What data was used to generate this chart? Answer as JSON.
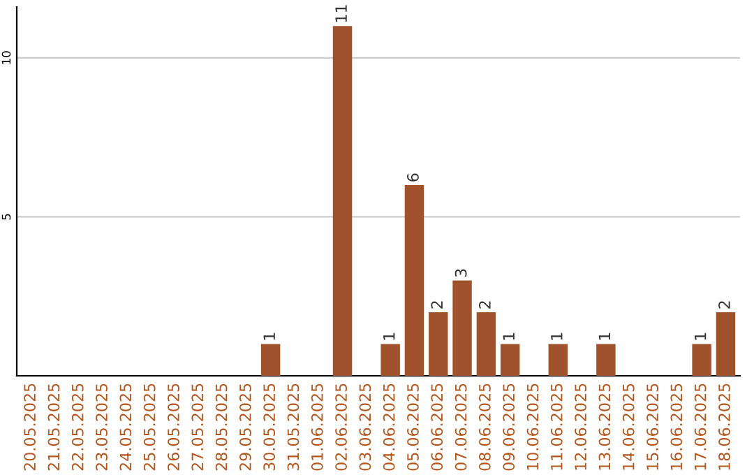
{
  "chart_data": {
    "type": "bar",
    "categories": [
      "20.05.2025",
      "21.05.2025",
      "22.05.2025",
      "23.05.2025",
      "24.05.2025",
      "25.05.2025",
      "26.05.2025",
      "27.05.2025",
      "28.05.2025",
      "29.05.2025",
      "30.05.2025",
      "31.05.2025",
      "01.06.2025",
      "02.06.2025",
      "03.06.2025",
      "04.06.2025",
      "05.06.2025",
      "06.06.2025",
      "07.06.2025",
      "08.06.2025",
      "09.06.2025",
      "10.06.2025",
      "11.06.2025",
      "12.06.2025",
      "13.06.2025",
      "14.06.2025",
      "15.06.2025",
      "16.06.2025",
      "17.06.2025",
      "18.06.2025"
    ],
    "values": [
      0,
      0,
      0,
      0,
      0,
      0,
      0,
      0,
      0,
      0,
      1,
      0,
      0,
      11,
      0,
      1,
      6,
      2,
      3,
      2,
      1,
      0,
      1,
      0,
      1,
      0,
      0,
      0,
      1,
      2
    ],
    "value_labels": [
      null,
      null,
      null,
      null,
      null,
      null,
      null,
      null,
      null,
      null,
      "1",
      null,
      null,
      "11",
      null,
      "1",
      "6",
      "2",
      "3",
      "2",
      "1",
      null,
      "1",
      null,
      "1",
      null,
      null,
      null,
      "1",
      "2"
    ],
    "color": "#a0522d",
    "ylim": [
      0,
      11.6
    ],
    "yticks": [
      5,
      10
    ],
    "grid": "y"
  }
}
